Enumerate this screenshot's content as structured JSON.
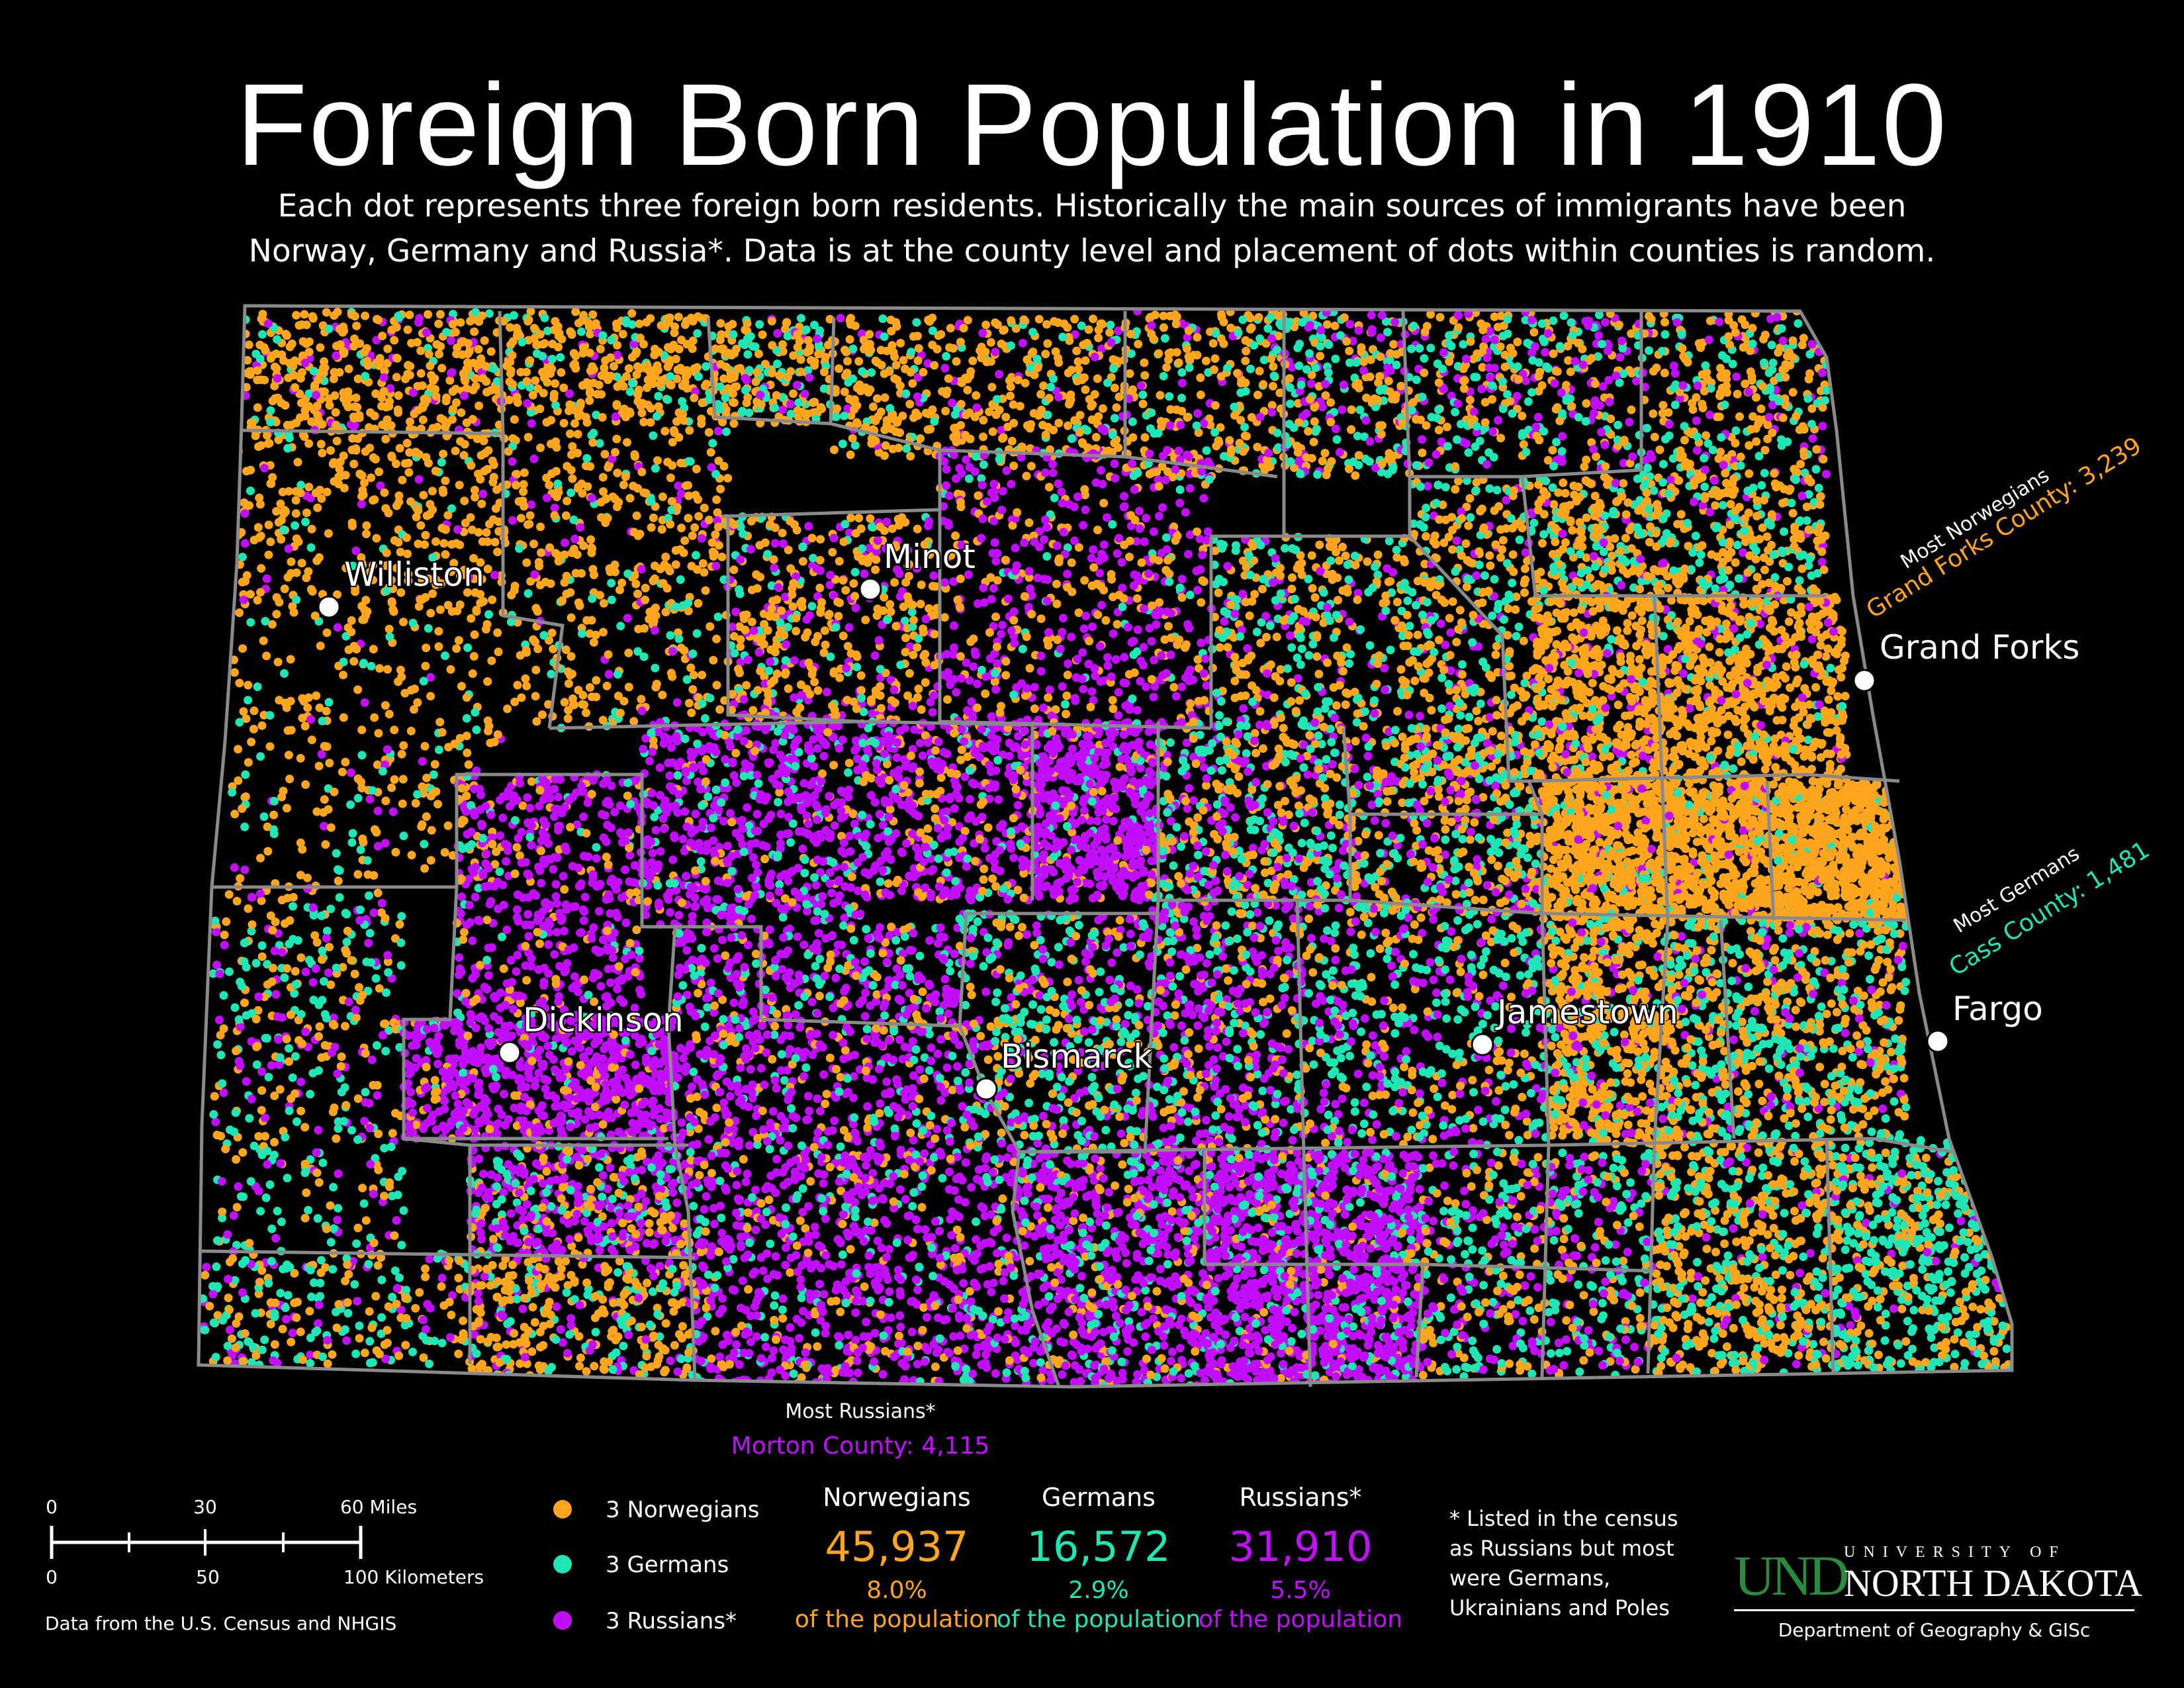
{
  "title": "Foreign Born Population in 1910",
  "subtitle": [
    "Each dot represents three foreign born residents. Historically the main sources of immigrants have been",
    "Norway, Germany and Russia*. Data is at the county level and placement of dots within counties is random."
  ],
  "colors": {
    "norwegians": "#ffa51e",
    "germans": "#1ee6b4",
    "russians": "#c30dff",
    "county_border": "#8a8a8a",
    "background": "#000000"
  },
  "cities": [
    {
      "name": "Williston"
    },
    {
      "name": "Minot"
    },
    {
      "name": "Grand Forks"
    },
    {
      "name": "Dickinson"
    },
    {
      "name": "Bismarck"
    },
    {
      "name": "Jamestown"
    },
    {
      "name": "Fargo"
    }
  ],
  "callouts": {
    "norwegians": {
      "heading": "Most Norwegians",
      "text": "Grand Forks County: 3,239"
    },
    "germans": {
      "heading": "Most Germans",
      "text": "Cass County: 1,481"
    },
    "russians": {
      "heading": "Most Russians*",
      "text": "Morton County: 4,115"
    }
  },
  "legend": [
    {
      "label": "3 Norwegians",
      "color": "#ffa51e"
    },
    {
      "label": "3 Germans",
      "color": "#1ee6b4"
    },
    {
      "label": "3 Russians*",
      "color": "#c30dff"
    }
  ],
  "stats": [
    {
      "group": "Norwegians",
      "count": "45,937",
      "percent": "8.0%",
      "note": "of the population",
      "color": "#ffa51e"
    },
    {
      "group": "Germans",
      "count": "16,572",
      "percent": "2.9%",
      "note": "of the population",
      "color": "#1ee6b4"
    },
    {
      "group": "Russians*",
      "count": "31,910",
      "percent": "5.5%",
      "note": "of the population",
      "color": "#c30dff"
    }
  ],
  "scale_bar": {
    "miles_labels": [
      "0",
      "30",
      "60 Miles"
    ],
    "km_labels": [
      "0",
      "50",
      "100 Kilometers"
    ]
  },
  "footnote": [
    "* Listed in the census",
    "as Russians but most",
    "were Germans,",
    "Ukrainians and Poles"
  ],
  "source": "Data from the U.S. Census and NHGIS",
  "logo": {
    "und": "UND",
    "university_of": "UNIVERSITY OF",
    "north_dakota": "NORTH DAKOTA",
    "department": "Department of Geography & GISc"
  }
}
